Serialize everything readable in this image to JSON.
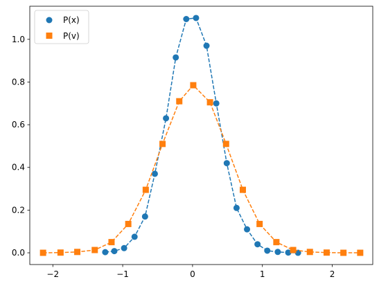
{
  "chart_data": {
    "type": "scatter",
    "xlim": [
      -2.33,
      2.58
    ],
    "ylim": [
      -0.055,
      1.155
    ],
    "xticks": [
      -2,
      -1,
      0,
      1,
      2
    ],
    "xtick_labels": [
      "−2",
      "−1",
      "0",
      "1",
      "2"
    ],
    "yticks": [
      0.0,
      0.2,
      0.4,
      0.6,
      0.8,
      1.0
    ],
    "ytick_labels": [
      "0.0",
      "0.2",
      "0.4",
      "0.6",
      "0.8",
      "1.0"
    ],
    "legend_position": "top-left",
    "series": [
      {
        "name": "P(x)",
        "marker": "circle",
        "color": "#1f77b4",
        "line_style": "dashed",
        "points": [
          [
            -1.25,
            0.003
          ],
          [
            -1.12,
            0.008
          ],
          [
            -0.98,
            0.022
          ],
          [
            -0.83,
            0.075
          ],
          [
            -0.68,
            0.17
          ],
          [
            -0.54,
            0.37
          ],
          [
            -0.38,
            0.63
          ],
          [
            -0.24,
            0.915
          ],
          [
            -0.09,
            1.095
          ],
          [
            0.05,
            1.1
          ],
          [
            0.2,
            0.97
          ],
          [
            0.34,
            0.7
          ],
          [
            0.49,
            0.42
          ],
          [
            0.63,
            0.21
          ],
          [
            0.78,
            0.11
          ],
          [
            0.93,
            0.04
          ],
          [
            1.07,
            0.01
          ],
          [
            1.22,
            0.004
          ],
          [
            1.37,
            0.001
          ],
          [
            1.51,
            0.0
          ]
        ]
      },
      {
        "name": "P(v)",
        "marker": "square",
        "color": "#ff7f0e",
        "line_style": "dashed",
        "points": [
          [
            -2.14,
            0.0
          ],
          [
            -1.89,
            0.001
          ],
          [
            -1.65,
            0.004
          ],
          [
            -1.4,
            0.013
          ],
          [
            -1.16,
            0.05
          ],
          [
            -0.92,
            0.135
          ],
          [
            -0.67,
            0.295
          ],
          [
            -0.43,
            0.51
          ],
          [
            -0.19,
            0.71
          ],
          [
            0.01,
            0.785
          ],
          [
            0.25,
            0.705
          ],
          [
            0.48,
            0.51
          ],
          [
            0.72,
            0.295
          ],
          [
            0.96,
            0.135
          ],
          [
            1.2,
            0.05
          ],
          [
            1.44,
            0.013
          ],
          [
            1.68,
            0.004
          ],
          [
            1.92,
            0.001
          ],
          [
            2.16,
            0.0
          ],
          [
            2.4,
            0.0
          ]
        ]
      }
    ]
  }
}
